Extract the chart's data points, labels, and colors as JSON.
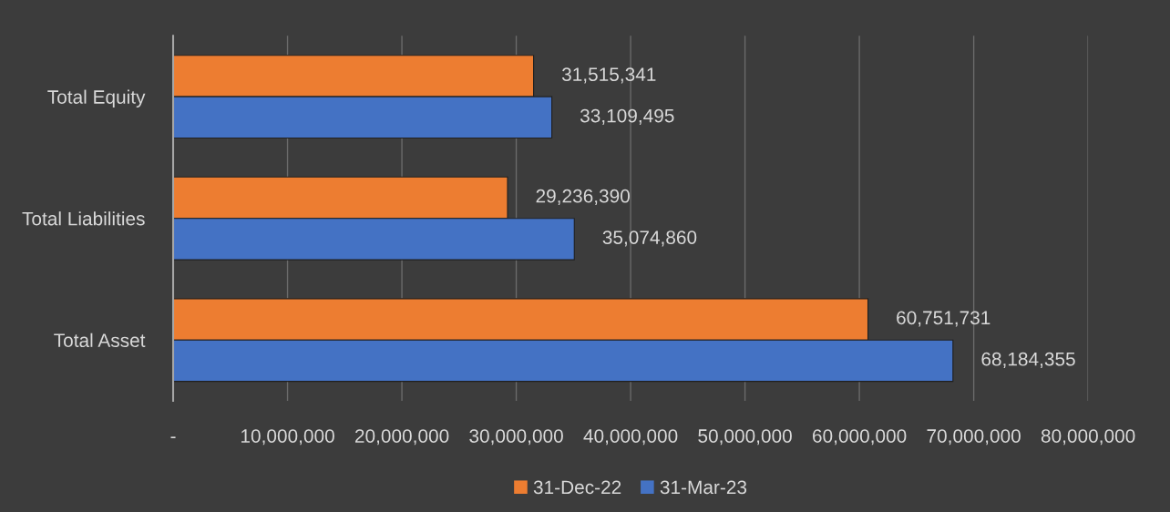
{
  "chart_data": {
    "type": "bar",
    "orientation": "horizontal",
    "categories": [
      "Total Equity",
      "Total Liabilities",
      "Total Asset"
    ],
    "series": [
      {
        "name": "31-Dec-22",
        "color": "#ed7d31",
        "values": [
          31515341,
          29236390,
          60751731
        ],
        "value_labels": [
          "31,515,341",
          "29,236,390",
          "60,751,731"
        ]
      },
      {
        "name": "31-Mar-23",
        "color": "#4472c4",
        "values": [
          33109495,
          35074860,
          68184355
        ],
        "value_labels": [
          "33,109,495",
          "35,074,860",
          "68,184,355"
        ]
      }
    ],
    "xlim": [
      0,
      80000000
    ],
    "xticks": [
      {
        "value": 0,
        "label": "-"
      },
      {
        "value": 10000000,
        "label": "10,000,000"
      },
      {
        "value": 20000000,
        "label": "20,000,000"
      },
      {
        "value": 30000000,
        "label": "30,000,000"
      },
      {
        "value": 40000000,
        "label": "40,000,000"
      },
      {
        "value": 50000000,
        "label": "50,000,000"
      },
      {
        "value": 60000000,
        "label": "60,000,000"
      },
      {
        "value": 70000000,
        "label": "70,000,000"
      },
      {
        "value": 80000000,
        "label": "80,000,000"
      }
    ],
    "grid": "x",
    "legend": "bottom"
  }
}
